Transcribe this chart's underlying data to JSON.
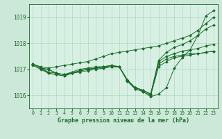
{
  "xlabel": "Graphe pression niveau de la mer (hPa)",
  "bg_color": "#cce8d8",
  "plot_bg_color": "#d8f0e4",
  "line_color": "#1a6b2a",
  "grid_color": "#b0d8c0",
  "xlim": [
    -0.5,
    23.5
  ],
  "ylim": [
    1015.5,
    1019.5
  ],
  "yticks": [
    1016,
    1017,
    1018,
    1019
  ],
  "xticks": [
    0,
    1,
    2,
    3,
    4,
    5,
    6,
    7,
    8,
    9,
    10,
    11,
    12,
    13,
    14,
    15,
    16,
    17,
    18,
    19,
    20,
    21,
    22,
    23
  ],
  "series": [
    [
      1017.2,
      1017.05,
      1017.0,
      1016.85,
      1016.8,
      1016.85,
      1016.9,
      1016.95,
      1017.0,
      1017.05,
      1017.1,
      1017.1,
      1016.55,
      1016.25,
      1016.15,
      1015.95,
      1016.05,
      1016.3,
      1017.05,
      1017.45,
      1017.75,
      1018.3,
      1019.05,
      1019.25
    ],
    [
      1017.2,
      1017.05,
      1017.0,
      1016.85,
      1016.8,
      1016.85,
      1016.95,
      1017.0,
      1017.05,
      1017.1,
      1017.15,
      1017.1,
      1016.6,
      1016.3,
      1016.2,
      1016.05,
      1017.35,
      1017.65,
      1017.85,
      1017.95,
      1018.1,
      1018.3,
      1018.55,
      1018.7
    ],
    [
      1017.2,
      1017.05,
      1016.9,
      1016.85,
      1016.8,
      1016.9,
      1017.0,
      1017.05,
      1017.1,
      1017.1,
      1017.15,
      1017.1,
      1016.6,
      1016.3,
      1016.2,
      1016.05,
      1017.3,
      1017.5,
      1017.6,
      1017.7,
      1017.75,
      1017.8,
      1017.9,
      1017.95
    ],
    [
      1017.2,
      1017.05,
      1016.85,
      1016.8,
      1016.75,
      1016.85,
      1016.95,
      1017.0,
      1017.05,
      1017.1,
      1017.1,
      1017.1,
      1016.6,
      1016.3,
      1016.2,
      1016.05,
      1017.2,
      1017.4,
      1017.5,
      1017.55,
      1017.6,
      1017.6,
      1017.65,
      1017.7
    ],
    [
      1017.15,
      1017.0,
      1016.85,
      1016.8,
      1016.75,
      1016.85,
      1016.95,
      1017.0,
      1017.05,
      1017.05,
      1017.1,
      1017.1,
      1016.6,
      1016.25,
      1016.15,
      1016.0,
      1017.1,
      1017.3,
      1017.45,
      1017.5,
      1017.55,
      1017.6,
      1017.65,
      1017.7
    ],
    [
      1017.2,
      1017.1,
      1017.05,
      1017.1,
      1017.15,
      1017.2,
      1017.25,
      1017.3,
      1017.4,
      1017.5,
      1017.6,
      1017.65,
      1017.7,
      1017.75,
      1017.8,
      1017.85,
      1017.9,
      1018.0,
      1018.1,
      1018.2,
      1018.3,
      1018.5,
      1018.75,
      1019.0
    ]
  ]
}
